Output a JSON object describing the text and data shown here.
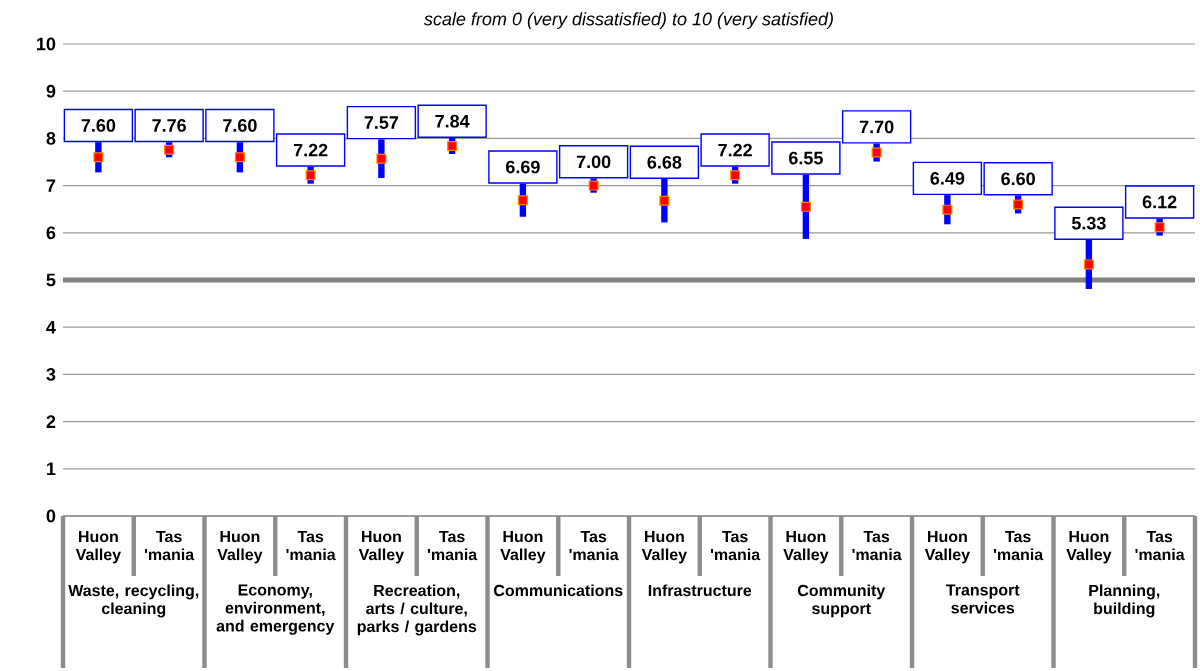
{
  "chart_data": {
    "type": "scatter",
    "title": "scale from 0 (very dissatisfied) to 10 (very satisfied)",
    "categories": [
      "Huon Valley",
      "Tas 'mania",
      "Huon Valley",
      "Tas 'mania",
      "Huon Valley",
      "Tas 'mania",
      "Huon Valley",
      "Tas 'mania",
      "Huon Valley",
      "Tas 'mania",
      "Huon Valley",
      "Tas 'mania",
      "Huon Valley",
      "Tas 'mania",
      "Huon Valley",
      "Tas 'mania"
    ],
    "values": [
      7.6,
      7.76,
      7.6,
      7.22,
      7.57,
      7.84,
      6.69,
      7.0,
      6.68,
      7.22,
      6.55,
      7.7,
      6.49,
      6.6,
      5.33,
      6.12
    ],
    "errors": [
      0.32,
      0.16,
      0.32,
      0.18,
      0.41,
      0.17,
      0.35,
      0.15,
      0.46,
      0.18,
      0.68,
      0.19,
      0.31,
      0.19,
      0.52,
      0.18
    ],
    "value_labels": [
      "7.60",
      "7.76",
      "7.60",
      "7.22",
      "7.57",
      "7.84",
      "6.69",
      "7.00",
      "6.68",
      "7.22",
      "6.55",
      "7.70",
      "6.49",
      "6.60",
      "5.33",
      "6.12"
    ],
    "color": "#ff0000",
    "marker": "square",
    "annotations": [
      "Waste, recycling, cleaning",
      "Economy, environment, and emergency",
      "Recreation, arts / culture, parks / gardens",
      "Communications",
      "Infrastructure",
      "Community support",
      "Transport services",
      "Planning, building"
    ],
    "ref_lines": [
      {
        "axis": "y",
        "value": 5,
        "color": "#808080"
      }
    ],
    "ylim": [
      0,
      10
    ],
    "yticks": [
      0,
      1,
      2,
      3,
      4,
      5,
      6,
      7,
      8,
      9,
      10
    ],
    "grid": "y"
  }
}
